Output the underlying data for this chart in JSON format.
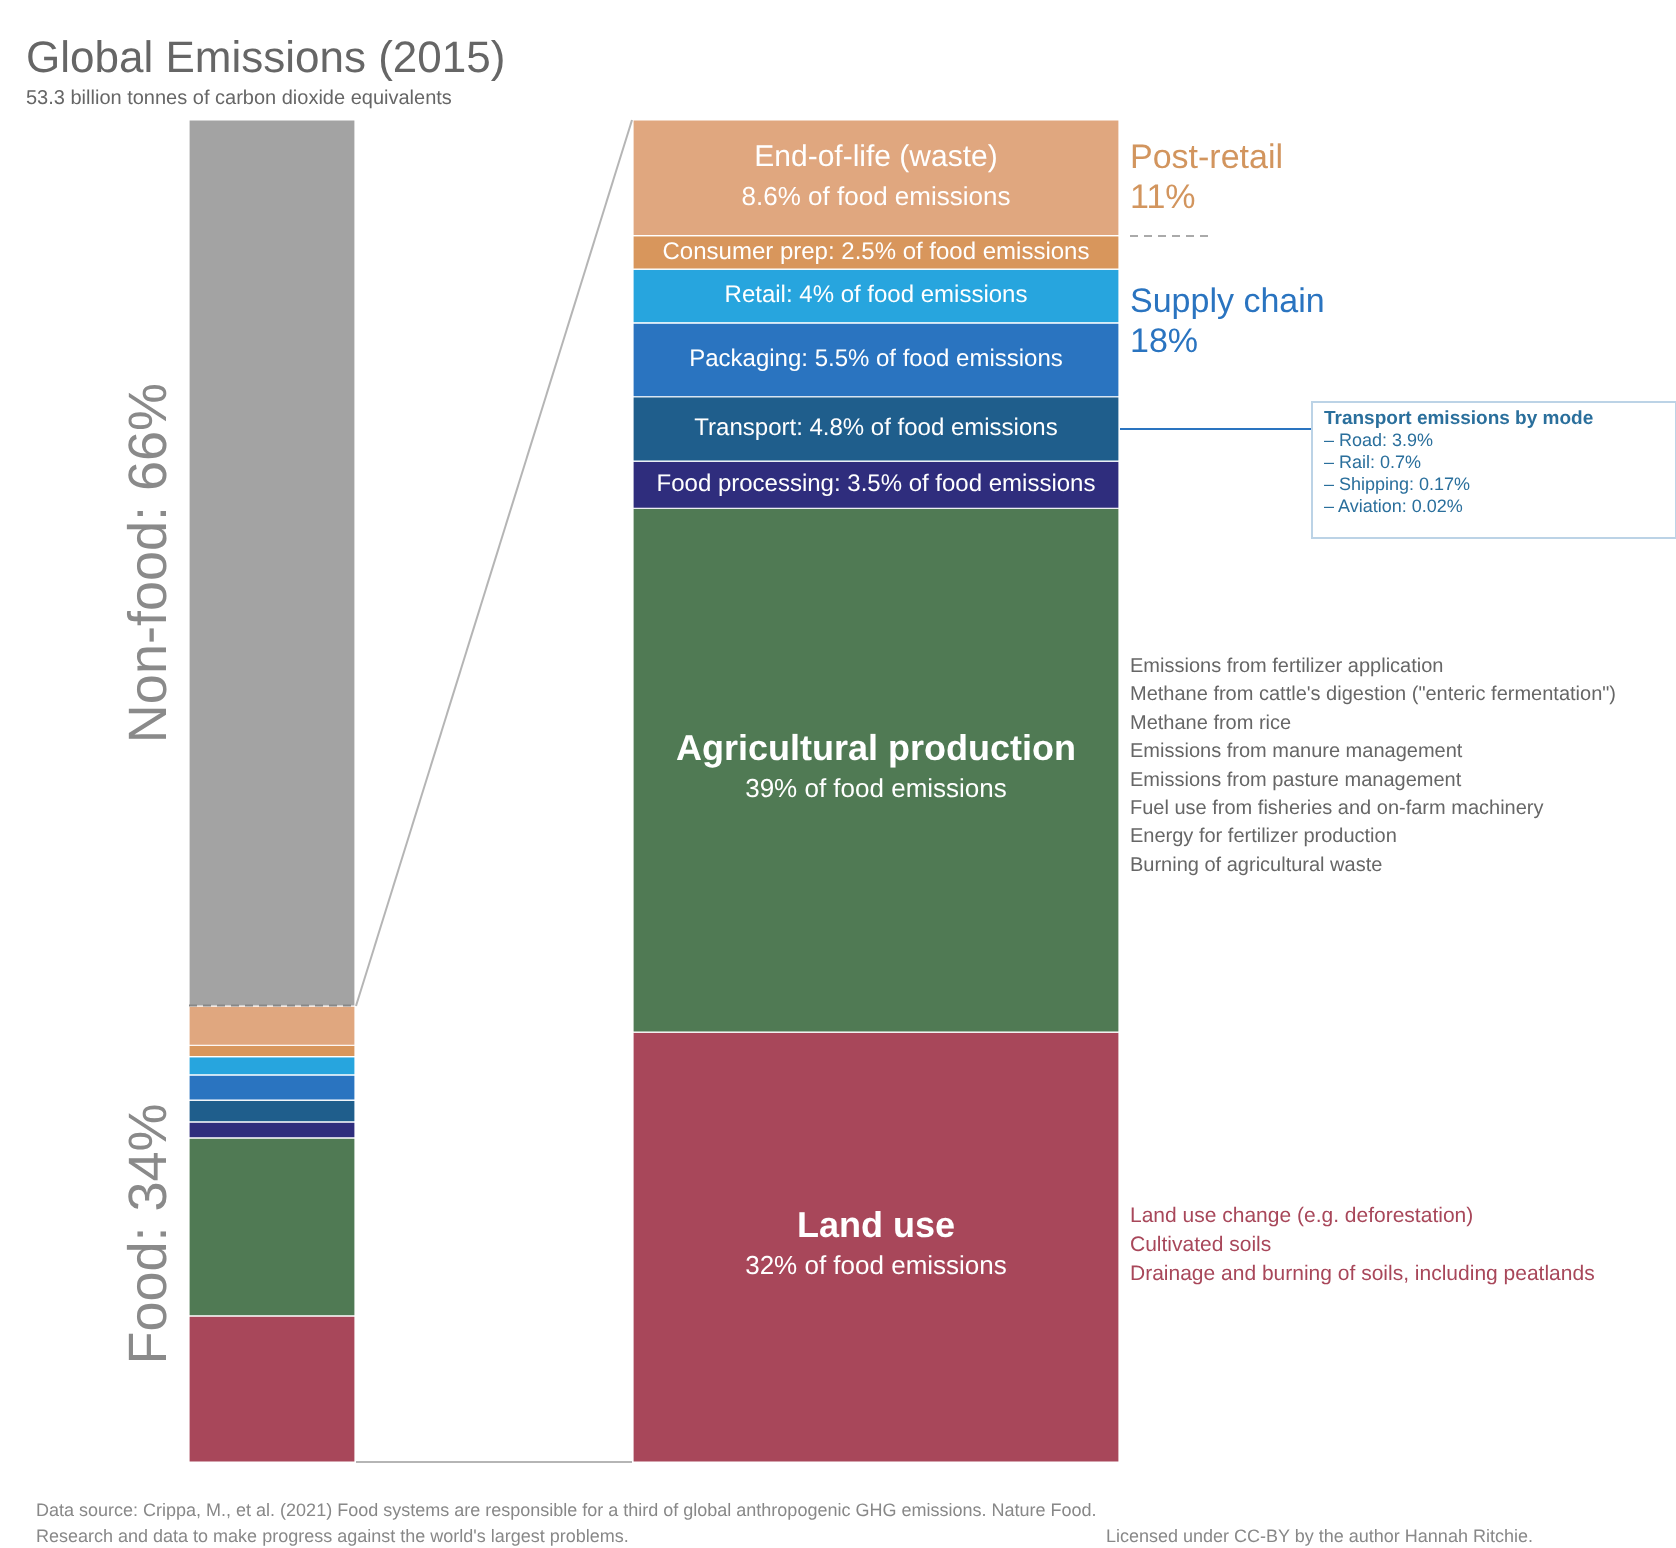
{
  "chart_data": [
    {
      "type": "bar",
      "title": "Global Emissions (2015)",
      "subtitle": "53.3 billion tonnes of carbon dioxide equivalents",
      "categories": [
        null
      ],
      "stacked": true,
      "series": [
        {
          "color": "#a8475a",
          "values": [
            10.88
          ]
        },
        {
          "color": "#507a54",
          "values": [
            13.26
          ]
        },
        {
          "color": "#2f2d7d",
          "values": [
            1.19
          ]
        },
        {
          "color": "#1f5e8c",
          "values": [
            1.632
          ]
        },
        {
          "color": "#2a74c0",
          "values": [
            1.87
          ]
        },
        {
          "color": "#27a5de",
          "values": [
            1.36
          ]
        },
        {
          "color": "#d8965c",
          "values": [
            0.85
          ]
        },
        {
          "color": "#e0a77f",
          "values": [
            2.924
          ]
        },
        {
          "color": "#a3a3a3",
          "values": [
            66
          ],
          "value_labels": [
            "Non-food: 66%"
          ]
        }
      ],
      "ref_lines": [
        {
          "axis": "y",
          "value": 34,
          "color": "#888888",
          "line_style": "dashed"
        }
      ],
      "annotations": [
        "Food: 34%",
        "Data source: Crippa, M., et al. (2021) Food systems are responsible for a third of global anthropogenic GHG emissions. Nature Food.",
        "Research and data to make progress against the world's largest problems.",
        "Licensed under CC-BY by the author Hannah Ritchie."
      ]
    },
    {
      "type": "bar",
      "categories": [
        null
      ],
      "stacked": true,
      "series": [
        {
          "name": "Land use",
          "color": "#a8475a",
          "values": [
            32
          ],
          "value_labels": [
            "32% of food emissions"
          ]
        },
        {
          "name": "Agricultural production",
          "color": "#507a54",
          "values": [
            39
          ],
          "value_labels": [
            "39% of food emissions"
          ]
        },
        {
          "color": "#2f2d7d",
          "values": [
            3.5
          ],
          "value_labels": [
            "Food processing: 3.5% of food emissions"
          ]
        },
        {
          "color": "#1f5e8c",
          "values": [
            4.8
          ],
          "value_labels": [
            "Transport: 4.8% of food emissions"
          ]
        },
        {
          "color": "#2a74c0",
          "values": [
            5.5
          ],
          "value_labels": [
            "Packaging: 5.5% of food emissions"
          ]
        },
        {
          "color": "#27a5de",
          "values": [
            4
          ],
          "value_labels": [
            "Retail: 4% of food emissions"
          ]
        },
        {
          "color": "#d8965c",
          "values": [
            2.5
          ],
          "value_labels": [
            "Consumer prep: 2.5% of food emissions"
          ]
        },
        {
          "name": "End-of-life (waste)",
          "color": "#e0a77f",
          "values": [
            8.6
          ],
          "value_labels": [
            "8.6% of food emissions"
          ]
        }
      ],
      "annotations": [
        "Post-retail 11%",
        "Supply chain 18%",
        "Transport emissions by mode",
        "– Road: 3.9%",
        "– Rail: 0.7%",
        "– Shipping: 0.17%",
        "– Aviation: 0.02%",
        "Emissions from fertilizer application",
        "Methane from cattle's digestion (\"enteric fermentation\")",
        "Methane from rice",
        "Emissions from manure management",
        "Emissions from pasture management",
        "Fuel use from fisheries and on-farm machinery",
        "Energy for fertilizer production",
        "Burning of agricultural waste",
        "Land use change (e.g. deforestation)",
        "Cultivated soils",
        "Drainage and burning of soils, including peatlands"
      ]
    }
  ]
}
